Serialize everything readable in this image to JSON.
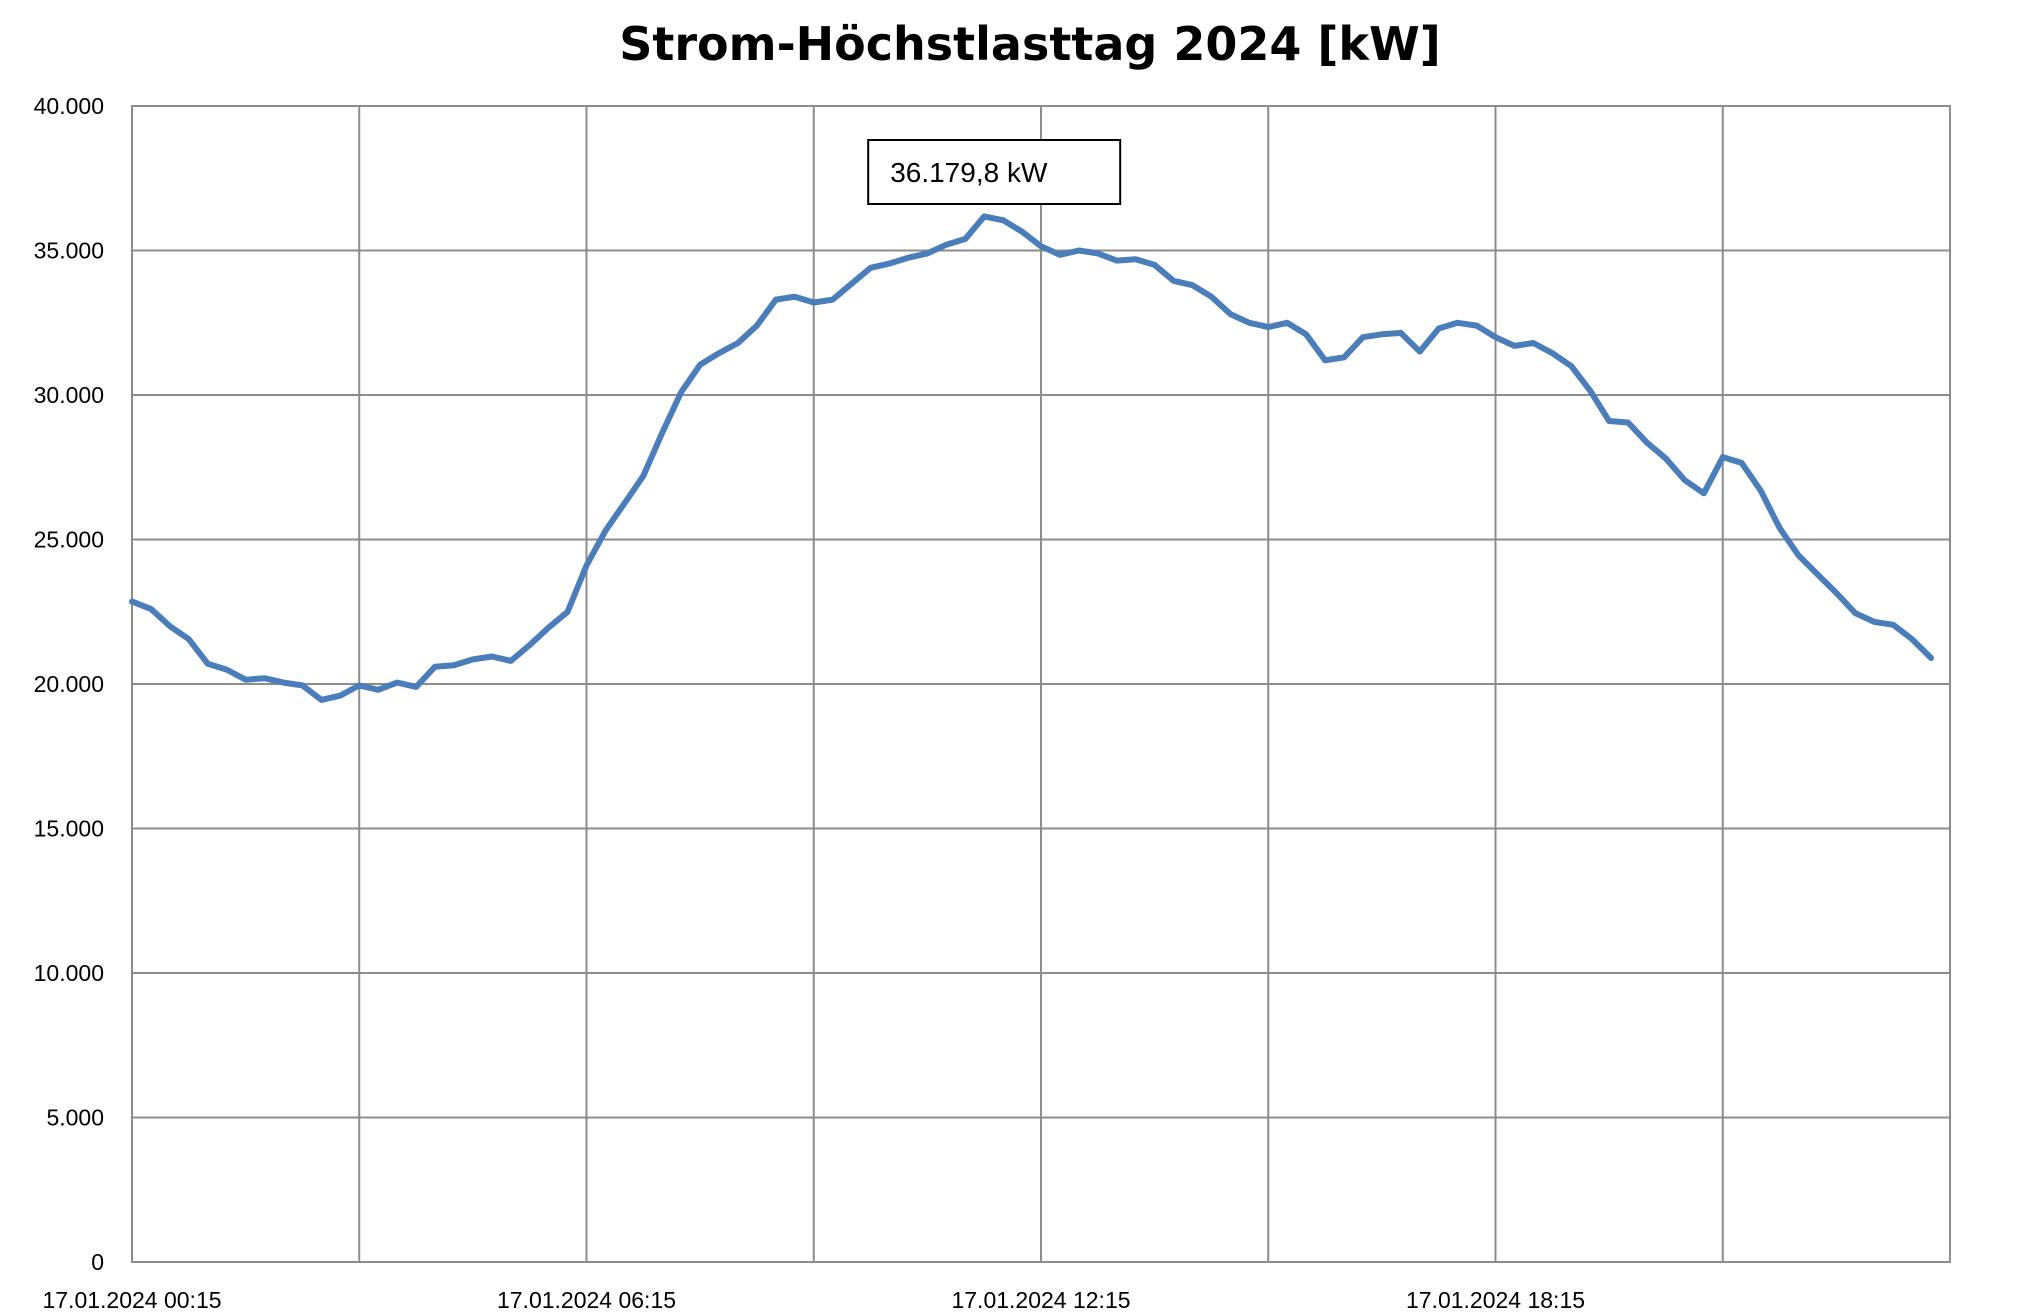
{
  "chart_data": {
    "type": "line",
    "title": "Strom-Höchstlasttag 2024 [kW]",
    "xlabel": "",
    "ylabel": "",
    "ylim": [
      0,
      40000
    ],
    "y_ticks": [
      0,
      5000,
      10000,
      15000,
      20000,
      25000,
      30000,
      35000,
      40000
    ],
    "y_tick_labels": [
      "0",
      "5.000",
      "10.000",
      "15.000",
      "20.000",
      "25.000",
      "30.000",
      "35.000",
      "40.000"
    ],
    "x_interval_minutes": 15,
    "x_start": "17.01.2024 00:15",
    "x_tick_labels": [
      {
        "label": "17.01.2024 00:15",
        "index": 0
      },
      {
        "label": "17.01.2024 06:15",
        "index": 24
      },
      {
        "label": "17.01.2024 12:15",
        "index": 48
      },
      {
        "label": "17.01.2024 18:15",
        "index": 72
      }
    ],
    "x_gridline_indices": [
      12,
      24,
      36,
      48,
      60,
      72,
      84
    ],
    "x_max_index": 96,
    "grid": true,
    "legend": "none",
    "series": [
      {
        "color": "#4a7ebb",
        "values": [
          22850,
          22600,
          22000,
          21550,
          20700,
          20500,
          20150,
          20200,
          20050,
          19950,
          19450,
          19600,
          19950,
          19800,
          20050,
          19900,
          20600,
          20650,
          20850,
          20950,
          20800,
          21350,
          21950,
          22500,
          24100,
          25300,
          26250,
          27200,
          28700,
          30100,
          31050,
          31450,
          31800,
          32400,
          33300,
          33400,
          33200,
          33300,
          33850,
          34400,
          34550,
          34750,
          34900,
          35200,
          35400,
          36180,
          36050,
          35650,
          35150,
          34850,
          35000,
          34900,
          34650,
          34700,
          34500,
          33950,
          33800,
          33400,
          32800,
          32500,
          32350,
          32500,
          32100,
          31200,
          31300,
          32000,
          32100,
          32150,
          31500,
          32300,
          32500,
          32400,
          32000,
          31700,
          31800,
          31450,
          31000,
          30150,
          29100,
          29050,
          28350,
          27800,
          27050,
          26600,
          27850,
          27650,
          26700,
          25400,
          24450,
          23800,
          23150,
          22450,
          22150,
          22050,
          21550,
          20900
        ]
      }
    ],
    "annotations": [
      {
        "text": "36.179,8 kW",
        "index": 45,
        "value": 36179.8
      }
    ]
  }
}
